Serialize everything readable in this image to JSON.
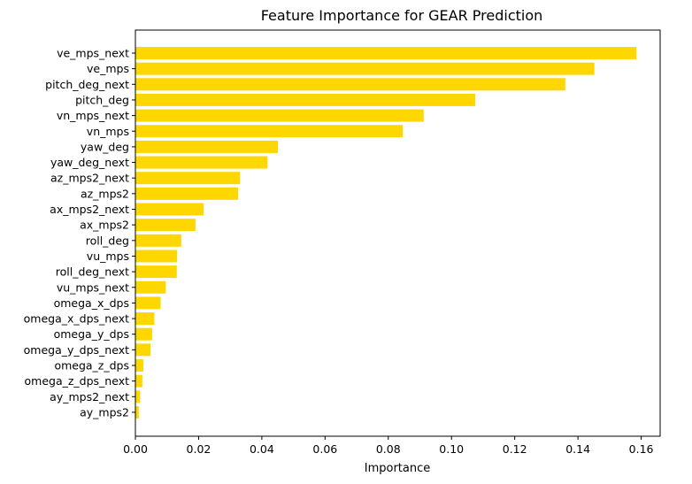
{
  "chart_data": {
    "type": "bar",
    "orientation": "horizontal",
    "title": "Feature Importance for GEAR Prediction",
    "xlabel": "Importance",
    "ylabel": "",
    "xlim": [
      0,
      0.166
    ],
    "xticks": [
      "0.00",
      "0.02",
      "0.04",
      "0.06",
      "0.08",
      "0.10",
      "0.12",
      "0.14",
      "0.16"
    ],
    "grid": false,
    "bar_color": "#FFD700",
    "categories": [
      "ve_mps_next",
      "ve_mps",
      "pitch_deg_next",
      "pitch_deg",
      "vn_mps_next",
      "vn_mps",
      "yaw_deg",
      "yaw_deg_next",
      "az_mps2_next",
      "az_mps2",
      "ax_mps2_next",
      "ax_mps2",
      "roll_deg",
      "vu_mps",
      "roll_deg_next",
      "vu_mps_next",
      "omega_x_dps",
      "omega_x_dps_next",
      "omega_y_dps",
      "omega_y_dps_next",
      "omega_z_dps",
      "omega_z_dps_next",
      "ay_mps2_next",
      "ay_mps2"
    ],
    "values": [
      0.1585,
      0.1452,
      0.136,
      0.1075,
      0.0912,
      0.0846,
      0.0451,
      0.0418,
      0.0331,
      0.0325,
      0.0216,
      0.019,
      0.0145,
      0.0132,
      0.0131,
      0.0096,
      0.008,
      0.006,
      0.0053,
      0.0048,
      0.0025,
      0.0022,
      0.0015,
      0.0011
    ]
  }
}
